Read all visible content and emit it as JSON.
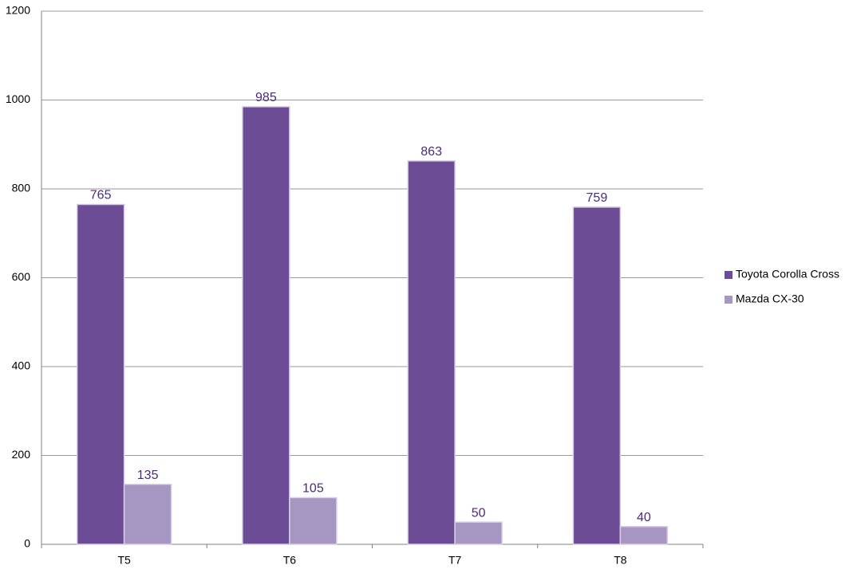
{
  "chart_data": {
    "type": "bar",
    "categories": [
      "T5",
      "T6",
      "T7",
      "T8"
    ],
    "series": [
      {
        "name": "Toyota Corolla Cross",
        "color": "#6b4c95",
        "values": [
          765,
          985,
          863,
          759
        ]
      },
      {
        "name": "Mazda CX-30",
        "color": "#a696c2",
        "values": [
          135,
          105,
          50,
          40
        ]
      }
    ],
    "ylim": [
      0,
      1200
    ],
    "yticks": [
      0,
      200,
      400,
      600,
      800,
      1000,
      1200
    ],
    "grid": true,
    "legend": "right"
  }
}
